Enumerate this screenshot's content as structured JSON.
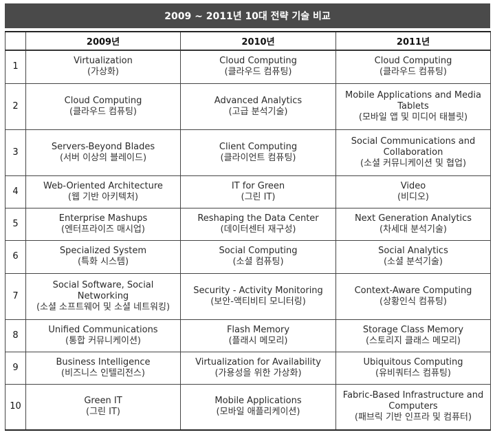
{
  "title": "2009 ~ 2011년 10대 전략 기술 비교",
  "headers": [
    "2009년",
    "2010년",
    "2011년"
  ],
  "rows": [
    {
      "num": "1",
      "y2009": {
        "en": "Virtualization",
        "ko": "(가상화)"
      },
      "y2010": {
        "en": "Cloud Computing",
        "ko": "(클라우드 컴퓨팅)"
      },
      "y2011": {
        "en": "Cloud Computing",
        "ko": "(클라우드 컴퓨팅)"
      }
    },
    {
      "num": "2",
      "y2009": {
        "en": "Cloud Computing",
        "ko": "(클라우드 컴퓨팅)"
      },
      "y2010": {
        "en": "Advanced Analytics",
        "ko": "(고급 분석기술)"
      },
      "y2011": {
        "en": "Mobile Applications and Media Tablets",
        "ko": "(모바일 앱 및 미디어 태블릿)"
      }
    },
    {
      "num": "3",
      "y2009": {
        "en": "Servers-Beyond Blades",
        "ko": "(서버 이상의 블레이드)"
      },
      "y2010": {
        "en": "Client Computing",
        "ko": "(클라이언트 컴퓨팅)"
      },
      "y2011": {
        "en": "Social Communications and Collaboration",
        "ko": "(소셜 커뮤니케이션 및 협업)"
      }
    },
    {
      "num": "4",
      "y2009": {
        "en": "Web-Oriented Architecture",
        "ko": "(웹 기반 아키텍처)"
      },
      "y2010": {
        "en": "IT for Green",
        "ko": "(그린 IT)"
      },
      "y2011": {
        "en": "Video",
        "ko": "(비디오)"
      }
    },
    {
      "num": "5",
      "y2009": {
        "en": "Enterprise Mashups",
        "ko": "(엔터프라이즈 매시업)"
      },
      "y2010": {
        "en": "Reshaping the Data Center",
        "ko": "(데이터센터 재구성)"
      },
      "y2011": {
        "en": "Next Generation Analytics",
        "ko": "(차세대 분석기술)"
      }
    },
    {
      "num": "6",
      "y2009": {
        "en": "Specialized System",
        "ko": "(특화 시스템)"
      },
      "y2010": {
        "en": "Social Computing",
        "ko": "(소셜 컴퓨팅)"
      },
      "y2011": {
        "en": "Social Analytics",
        "ko": "(소셜 분석기술)"
      }
    },
    {
      "num": "7",
      "y2009": {
        "en": "Social Software, Social Networking",
        "ko": "(소셜 소프트웨어 및 소셜 네트워킹)"
      },
      "y2010": {
        "en": "Security - Activity Monitoring",
        "ko": "(보안-액티비티 모니터링)"
      },
      "y2011": {
        "en": "Context-Aware Computing",
        "ko": "(상황인식 컴퓨팅)"
      }
    },
    {
      "num": "8",
      "y2009": {
        "en": "Unified Communications",
        "ko": "(통합 커뮤니케이션)"
      },
      "y2010": {
        "en": "Flash Memory",
        "ko": "(플래시 메모리)"
      },
      "y2011": {
        "en": "Storage Class Memory",
        "ko": "(스토리지 클래스 메모리)"
      }
    },
    {
      "num": "9",
      "y2009": {
        "en": "Business Intelligence",
        "ko": "(비즈니스 인텔리전스)"
      },
      "y2010": {
        "en": "Virtualization for Availability",
        "ko": "(가용성을 위한 가상화)"
      },
      "y2011": {
        "en": "Ubiquitous Computing",
        "ko": "(유비쿼터스 컴퓨팅)"
      }
    },
    {
      "num": "10",
      "y2009": {
        "en": "Green IT",
        "ko": "(그린 IT)"
      },
      "y2010": {
        "en": "Mobile Applications",
        "ko": "(모바일 애플리케이션)"
      },
      "y2011": {
        "en": "Fabric-Based Infrastructure and Computers",
        "ko": "(패브릭 기반 인프라 및 컴퓨터)"
      }
    }
  ]
}
